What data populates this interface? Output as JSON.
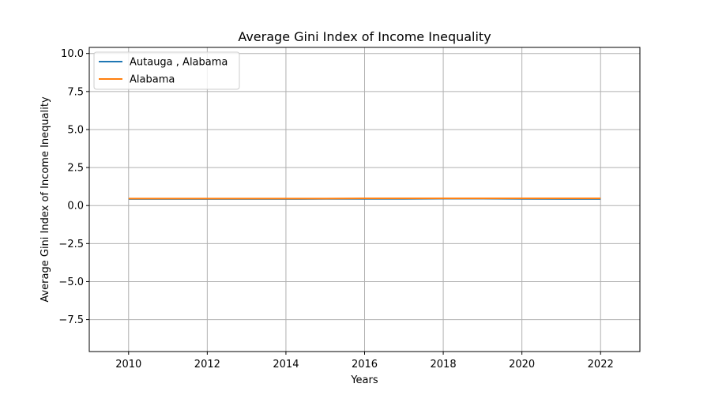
{
  "chart_data": {
    "type": "line",
    "title": "Average Gini Index of Income Inequality",
    "xlabel": "Years",
    "ylabel": "Average Gini Index of Income Inequality",
    "xlim": [
      2009,
      2023
    ],
    "ylim": [
      -9.6,
      10.4
    ],
    "xticks": [
      2010,
      2012,
      2014,
      2016,
      2018,
      2020,
      2022
    ],
    "yticks": [
      -7.5,
      -5.0,
      -2.5,
      0.0,
      2.5,
      5.0,
      7.5,
      10.0
    ],
    "xtick_labels": [
      "2010",
      "2012",
      "2014",
      "2016",
      "2018",
      "2020",
      "2022"
    ],
    "ytick_labels": [
      "−7.5",
      "−5.0",
      "−2.5",
      "0.0",
      "2.5",
      "5.0",
      "7.5",
      "10.0"
    ],
    "grid": true,
    "legend_position": "top-left",
    "x": [
      2010,
      2011,
      2012,
      2013,
      2014,
      2015,
      2016,
      2017,
      2018,
      2019,
      2020,
      2021,
      2022
    ],
    "series": [
      {
        "name": "Autauga , Alabama",
        "color": "#1f77b4",
        "values": [
          0.43,
          0.43,
          0.43,
          0.43,
          0.43,
          0.44,
          0.44,
          0.44,
          0.45,
          0.45,
          0.44,
          0.43,
          0.43
        ]
      },
      {
        "name": "Alabama",
        "color": "#ff7f0e",
        "values": [
          0.46,
          0.46,
          0.46,
          0.46,
          0.46,
          0.46,
          0.47,
          0.47,
          0.47,
          0.47,
          0.47,
          0.47,
          0.47
        ]
      }
    ]
  }
}
